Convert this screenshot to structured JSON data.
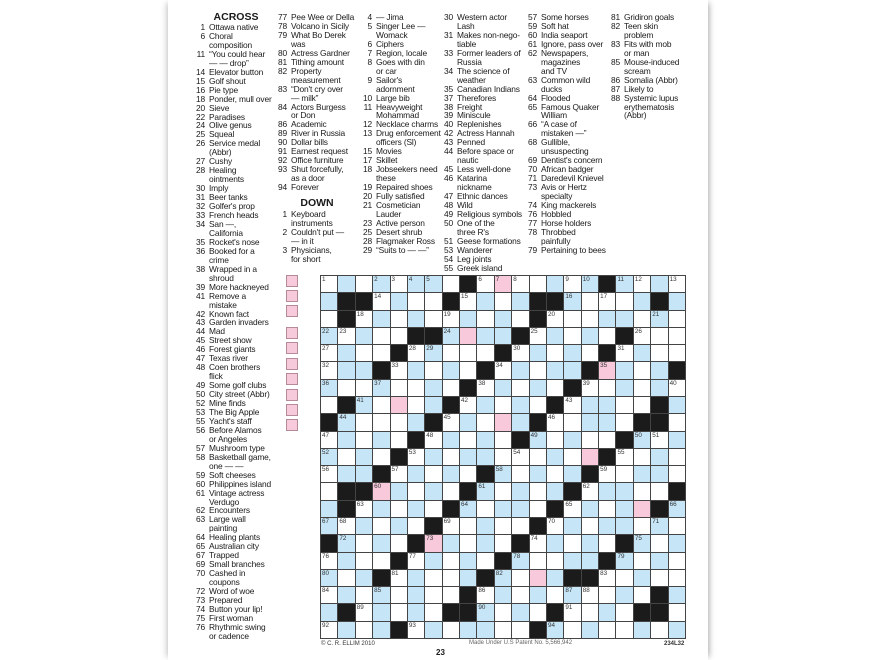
{
  "puzzle": {
    "across_label": "ACROSS",
    "down_label": "DOWN",
    "across": [
      {
        "n": "1",
        "t": "Ottawa native"
      },
      {
        "n": "6",
        "t": "Choral\ncomposition"
      },
      {
        "n": "11",
        "t": "“You could hear\n— — drop”"
      },
      {
        "n": "14",
        "t": "Elevator button"
      },
      {
        "n": "15",
        "t": "Golf shout"
      },
      {
        "n": "16",
        "t": "Pie type"
      },
      {
        "n": "18",
        "t": "Ponder, mull over"
      },
      {
        "n": "20",
        "t": "Sieve"
      },
      {
        "n": "22",
        "t": "Paradises"
      },
      {
        "n": "24",
        "t": "Olive genus"
      },
      {
        "n": "25",
        "t": "Squeal"
      },
      {
        "n": "26",
        "t": "Service medal\n(Abbr)"
      },
      {
        "n": "27",
        "t": "Cushy"
      },
      {
        "n": "28",
        "t": "Healing\nointments"
      },
      {
        "n": "30",
        "t": "Imply"
      },
      {
        "n": "31",
        "t": "Beer tanks"
      },
      {
        "n": "32",
        "t": "Golfer's prop"
      },
      {
        "n": "33",
        "t": "French heads"
      },
      {
        "n": "34",
        "t": "San —,\nCalifornia"
      },
      {
        "n": "35",
        "t": "Rocket's nose"
      },
      {
        "n": "36",
        "t": "Booked for a\ncrime"
      },
      {
        "n": "38",
        "t": "Wrapped in a\nshroud"
      },
      {
        "n": "39",
        "t": "More hackneyed"
      },
      {
        "n": "41",
        "t": "Remove a\nmistake"
      },
      {
        "n": "42",
        "t": "Known fact"
      },
      {
        "n": "43",
        "t": "Garden invaders"
      },
      {
        "n": "44",
        "t": "Mad"
      },
      {
        "n": "45",
        "t": "Street show"
      },
      {
        "n": "46",
        "t": "Forest giants"
      },
      {
        "n": "47",
        "t": "Texas river"
      },
      {
        "n": "48",
        "t": "Coen brothers\nflick"
      },
      {
        "n": "49",
        "t": "Some golf clubs"
      },
      {
        "n": "50",
        "t": "City street (Abbr)"
      },
      {
        "n": "52",
        "t": "Mine finds"
      },
      {
        "n": "53",
        "t": "The Big Apple"
      },
      {
        "n": "55",
        "t": "Yacht's staff"
      },
      {
        "n": "56",
        "t": "Before Alamos\nor Angeles"
      },
      {
        "n": "57",
        "t": "Mushroom type"
      },
      {
        "n": "58",
        "t": "Basketball game,\none — —"
      },
      {
        "n": "59",
        "t": "Soft cheeses"
      },
      {
        "n": "60",
        "t": "Philippines island"
      },
      {
        "n": "61",
        "t": "Vintage actress\nVerdugo"
      },
      {
        "n": "62",
        "t": "Encounters"
      },
      {
        "n": "63",
        "t": "Large wall\npainting"
      },
      {
        "n": "64",
        "t": "Healing plants"
      },
      {
        "n": "65",
        "t": "Australian city"
      },
      {
        "n": "67",
        "t": "Trapped"
      },
      {
        "n": "69",
        "t": "Small branches"
      },
      {
        "n": "70",
        "t": "Cashed in\ncoupons"
      },
      {
        "n": "72",
        "t": "Word of woe"
      },
      {
        "n": "73",
        "t": "Prepared"
      },
      {
        "n": "74",
        "t": "Button your lip!"
      },
      {
        "n": "75",
        "t": "First woman"
      },
      {
        "n": "76",
        "t": "Rhythmic swing\nor cadence"
      },
      {
        "n": "77",
        "t": "Pee Wee or Della"
      },
      {
        "n": "78",
        "t": "Volcano in Sicily"
      },
      {
        "n": "79",
        "t": "What Bo Derek\nwas"
      },
      {
        "n": "80",
        "t": "Actress Gardner"
      },
      {
        "n": "81",
        "t": "Tithing amount"
      },
      {
        "n": "82",
        "t": "Property\nmeasurement"
      },
      {
        "n": "83",
        "t": "“Don't cry over\n— milk”"
      },
      {
        "n": "84",
        "t": "Actors Burgess\nor Don"
      },
      {
        "n": "86",
        "t": "Academic"
      },
      {
        "n": "89",
        "t": "River in Russia"
      },
      {
        "n": "90",
        "t": "Dollar bills"
      },
      {
        "n": "91",
        "t": "Earnest request"
      },
      {
        "n": "92",
        "t": "Office furniture"
      },
      {
        "n": "93",
        "t": "Shut forcefully,\nas a door"
      },
      {
        "n": "94",
        "t": "Forever"
      }
    ],
    "down": [
      {
        "n": "1",
        "t": "Keyboard\ninstruments"
      },
      {
        "n": "2",
        "t": "Couldn't put —\n— in it"
      },
      {
        "n": "3",
        "t": "Physicians,\nfor short"
      },
      {
        "n": "4",
        "t": "— Jima"
      },
      {
        "n": "5",
        "t": "Singer Lee —\nWomack"
      },
      {
        "n": "6",
        "t": "Ciphers"
      },
      {
        "n": "7",
        "t": "Region, locale"
      },
      {
        "n": "8",
        "t": "Goes with din\nor car"
      },
      {
        "n": "9",
        "t": "Sailor's\nadornment"
      },
      {
        "n": "10",
        "t": "Large bib"
      },
      {
        "n": "11",
        "t": "Heavyweight\nMohammad"
      },
      {
        "n": "12",
        "t": "Necklace charms"
      },
      {
        "n": "13",
        "t": "Drug enforcement\nofficers (Sl)"
      },
      {
        "n": "15",
        "t": "Movies"
      },
      {
        "n": "17",
        "t": "Skillet"
      },
      {
        "n": "18",
        "t": "Jobseekers need\nthese"
      },
      {
        "n": "19",
        "t": "Repaired shoes"
      },
      {
        "n": "20",
        "t": "Fully satisfied"
      },
      {
        "n": "21",
        "t": "Cosmetician\nLauder"
      },
      {
        "n": "23",
        "t": "Active person"
      },
      {
        "n": "25",
        "t": "Desert shrub"
      },
      {
        "n": "28",
        "t": "Flagmaker Ross"
      },
      {
        "n": "29",
        "t": "“Suits to — —”"
      },
      {
        "n": "30",
        "t": "Western actor\nLash"
      },
      {
        "n": "31",
        "t": "Makes non-nego-\ntiable"
      },
      {
        "n": "33",
        "t": "Former leaders of\nRussia"
      },
      {
        "n": "34",
        "t": "The science of\nweather"
      },
      {
        "n": "35",
        "t": "Canadian Indians"
      },
      {
        "n": "37",
        "t": "Therefores"
      },
      {
        "n": "38",
        "t": "Freight"
      },
      {
        "n": "39",
        "t": "Miniscule"
      },
      {
        "n": "40",
        "t": "Replenishes"
      },
      {
        "n": "42",
        "t": "Actress Hannah"
      },
      {
        "n": "43",
        "t": "Penned"
      },
      {
        "n": "44",
        "t": "Before space or\nnautic"
      },
      {
        "n": "45",
        "t": "Less well-done"
      },
      {
        "n": "46",
        "t": "Katarina\nnickname"
      },
      {
        "n": "47",
        "t": "Ethnic dances"
      },
      {
        "n": "48",
        "t": "Wild"
      },
      {
        "n": "49",
        "t": "Religious symbols"
      },
      {
        "n": "50",
        "t": "One of the\nthree R's"
      },
      {
        "n": "51",
        "t": "Geese formations"
      },
      {
        "n": "53",
        "t": "Wanderer"
      },
      {
        "n": "54",
        "t": "Leg joints"
      },
      {
        "n": "55",
        "t": "Greek island"
      },
      {
        "n": "57",
        "t": "Some horses"
      },
      {
        "n": "59",
        "t": "Soft hat"
      },
      {
        "n": "60",
        "t": "India seaport"
      },
      {
        "n": "61",
        "t": "Ignore, pass over"
      },
      {
        "n": "62",
        "t": "Newspapers,\nmagazines\nand TV"
      },
      {
        "n": "63",
        "t": "Common wild\nducks"
      },
      {
        "n": "64",
        "t": "Flooded"
      },
      {
        "n": "65",
        "t": "Famous Quaker\nWilliam"
      },
      {
        "n": "66",
        "t": "“A case of\nmistaken —”"
      },
      {
        "n": "68",
        "t": "Gullible,\nunsuspecting"
      },
      {
        "n": "69",
        "t": "Dentist's concern"
      },
      {
        "n": "70",
        "t": "African badger"
      },
      {
        "n": "71",
        "t": "Daredevil Knievel"
      },
      {
        "n": "73",
        "t": "Avis or Hertz\nspecialty"
      },
      {
        "n": "74",
        "t": "King mackerels"
      },
      {
        "n": "76",
        "t": "Hobbled"
      },
      {
        "n": "77",
        "t": "Horse holders"
      },
      {
        "n": "78",
        "t": "Throbbed\npainfully"
      },
      {
        "n": "79",
        "t": "Pertaining to bees"
      },
      {
        "n": "81",
        "t": "Gridiron goals"
      },
      {
        "n": "82",
        "t": "Teen skin\nproblem"
      },
      {
        "n": "83",
        "t": "Fits with mob\nor man"
      },
      {
        "n": "85",
        "t": "Mouse-induced\nscream"
      },
      {
        "n": "86",
        "t": "Somalia (Abbr)"
      },
      {
        "n": "87",
        "t": "Likely to"
      },
      {
        "n": "88",
        "t": "Systemic lupus\nerythematosis\n(Abbr)"
      }
    ],
    "grid": {
      "legend": {
        "#": "black",
        "b": "blue",
        "p": "pink",
        ".": "white"
      },
      "rows": [
        ".b.b.bb.#.p..b.b#b.b.",
        "b##.b..#.b.b##b...b#b",
        ".#.b.b..b.b.#...bb.b.",
        "b.b..##bpbb#.b.b.#...",
        ".b..#.b...#.b.b.#.b..",
        ".bb#.b.b.#.b.bb#pb.b#",
        "b..b..b.#.b.b.#..b.b.",
        ".#b.p.b#.b.b.#.bb..#b",
        "#b...b#.b.pb#..bb.##.",
        ".b.b.#.b.b.#b.b..#b.b",
        "b.b.#.b.bb...b.p#..b.",
        ".bb#.b.b.#b.b.b#..bb.",
        ".##pb.b.#b.b.b#.bb..#",
        "b#.b.b.#b.bb.#.b.bp#b",
        "b.b.b.#..b..#.b.bb.b.",
        "#b.b.#pb.b.#.b.b.#b.b",
        ".b..#.b.b.#b..bb#b.b.",
        "b.b#.b..b#b.pb##..b..",
        ".b.b.b..#.b.b.b..b.#b",
        "b#.b.b.##b.b.#..b.##.",
        ".b.b#.b.bb..#b.b..b.b"
      ],
      "numbers": [
        [
          0,
          0,
          1
        ],
        [
          0,
          3,
          2
        ],
        [
          0,
          4,
          3
        ],
        [
          0,
          5,
          4
        ],
        [
          0,
          6,
          5
        ],
        [
          0,
          9,
          6
        ],
        [
          0,
          10,
          7
        ],
        [
          0,
          11,
          8
        ],
        [
          0,
          14,
          9
        ],
        [
          0,
          15,
          10
        ],
        [
          0,
          17,
          11
        ],
        [
          0,
          18,
          12
        ],
        [
          0,
          20,
          13
        ],
        [
          1,
          3,
          14
        ],
        [
          1,
          8,
          15
        ],
        [
          1,
          14,
          16
        ],
        [
          1,
          16,
          17
        ],
        [
          2,
          2,
          18
        ],
        [
          2,
          7,
          19
        ],
        [
          2,
          13,
          20
        ],
        [
          2,
          19,
          21
        ],
        [
          3,
          0,
          22
        ],
        [
          3,
          1,
          23
        ],
        [
          3,
          7,
          24
        ],
        [
          3,
          12,
          25
        ],
        [
          3,
          18,
          26
        ],
        [
          4,
          0,
          27
        ],
        [
          4,
          5,
          28
        ],
        [
          4,
          6,
          29
        ],
        [
          4,
          11,
          30
        ],
        [
          4,
          17,
          31
        ],
        [
          5,
          0,
          32
        ],
        [
          5,
          4,
          33
        ],
        [
          5,
          10,
          34
        ],
        [
          5,
          16,
          35
        ],
        [
          6,
          0,
          36
        ],
        [
          6,
          3,
          37
        ],
        [
          6,
          9,
          38
        ],
        [
          6,
          15,
          39
        ],
        [
          6,
          20,
          40
        ],
        [
          7,
          2,
          41
        ],
        [
          7,
          8,
          42
        ],
        [
          7,
          14,
          43
        ],
        [
          8,
          1,
          44
        ],
        [
          8,
          7,
          45
        ],
        [
          8,
          13,
          46
        ],
        [
          9,
          0,
          47
        ],
        [
          9,
          6,
          48
        ],
        [
          9,
          12,
          49
        ],
        [
          9,
          18,
          50
        ],
        [
          9,
          19,
          51
        ],
        [
          10,
          0,
          52
        ],
        [
          10,
          5,
          53
        ],
        [
          10,
          11,
          54
        ],
        [
          10,
          17,
          55
        ],
        [
          11,
          0,
          56
        ],
        [
          11,
          4,
          57
        ],
        [
          11,
          10,
          58
        ],
        [
          11,
          16,
          59
        ],
        [
          12,
          3,
          60
        ],
        [
          12,
          9,
          61
        ],
        [
          12,
          15,
          62
        ],
        [
          13,
          2,
          63
        ],
        [
          13,
          8,
          64
        ],
        [
          13,
          14,
          65
        ],
        [
          13,
          20,
          66
        ],
        [
          14,
          0,
          67
        ],
        [
          14,
          1,
          68
        ],
        [
          14,
          7,
          69
        ],
        [
          14,
          13,
          70
        ],
        [
          14,
          19,
          71
        ],
        [
          15,
          1,
          72
        ],
        [
          15,
          6,
          73
        ],
        [
          15,
          12,
          74
        ],
        [
          15,
          18,
          75
        ],
        [
          16,
          0,
          76
        ],
        [
          16,
          5,
          77
        ],
        [
          16,
          11,
          78
        ],
        [
          16,
          17,
          79
        ],
        [
          17,
          0,
          80
        ],
        [
          17,
          4,
          81
        ],
        [
          17,
          10,
          82
        ],
        [
          17,
          16,
          83
        ],
        [
          18,
          0,
          84
        ],
        [
          18,
          3,
          85
        ],
        [
          18,
          9,
          86
        ],
        [
          18,
          14,
          87
        ],
        [
          18,
          15,
          88
        ],
        [
          19,
          2,
          89
        ],
        [
          19,
          9,
          90
        ],
        [
          19,
          14,
          91
        ],
        [
          20,
          0,
          92
        ],
        [
          20,
          5,
          93
        ],
        [
          20,
          13,
          94
        ]
      ]
    },
    "answer_boxes": {
      "group1": 3,
      "group2": 7,
      "color": "#f7cadb"
    }
  },
  "footer": {
    "copyright": "© C. R. ELLIM 2010",
    "patent": "Made Under U.S Patent No. 5,566,942",
    "code": "234L32",
    "page_number": "23"
  }
}
